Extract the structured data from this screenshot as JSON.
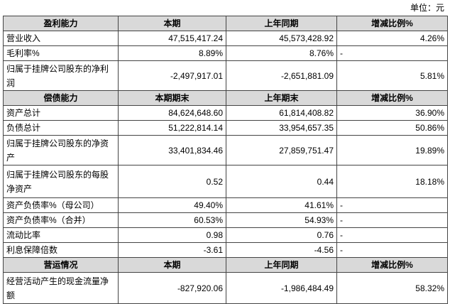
{
  "unit": "单位：元",
  "table": {
    "sections": [
      {
        "header": [
          "盈利能力",
          "本期",
          "上年同期",
          "增减比例%"
        ],
        "rows": [
          [
            "营业收入",
            "47,515,417.24",
            "45,573,428.92",
            "4.26%"
          ],
          [
            "毛利率%",
            "8.89%",
            "8.76%",
            "-"
          ],
          [
            "归属于挂牌公司股东的净利润",
            "-2,497,917.01",
            "-2,651,881.09",
            "5.81%"
          ]
        ]
      },
      {
        "header": [
          "偿债能力",
          "本期期末",
          "上年期末",
          "增减比例%"
        ],
        "rows": [
          [
            "资产总计",
            "84,624,648.60",
            "61,814,408.82",
            "36.90%"
          ],
          [
            "负债总计",
            "51,222,814.14",
            "33,954,657.35",
            "50.86%"
          ],
          [
            "归属于挂牌公司股东的净资产",
            "33,401,834.46",
            "27,859,751.47",
            "19.89%"
          ],
          [
            "归属于挂牌公司股东的每股净资产",
            "0.52",
            "0.44",
            "18.18%"
          ],
          [
            "资产负债率%（母公司）",
            "49.40%",
            "41.61%",
            "-"
          ],
          [
            "资产负债率%（合并）",
            "60.53%",
            "54.93%",
            "-"
          ],
          [
            "流动比率",
            "0.98",
            "0.76",
            "-"
          ],
          [
            "利息保障倍数",
            "-3.61",
            "-4.56",
            "-"
          ]
        ]
      },
      {
        "header": [
          "营运情况",
          "本期",
          "上年同期",
          "增减比例%"
        ],
        "rows": [
          [
            "经营活动产生的现金流量净额",
            "-827,920.06",
            "-1,986,484.49",
            "58.32%"
          ]
        ]
      }
    ]
  }
}
